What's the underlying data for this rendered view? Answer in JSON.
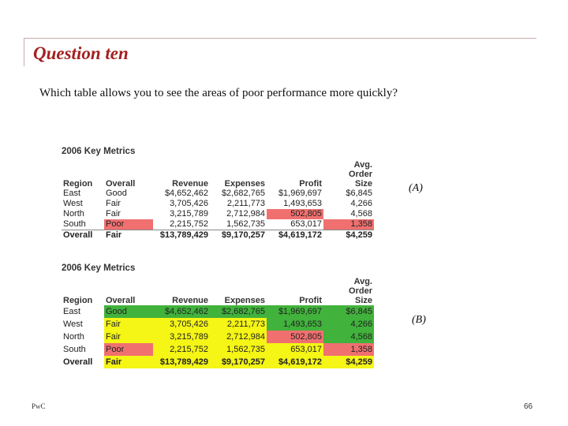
{
  "title": "Question ten",
  "question": "Which table allows you to see the areas of poor performance more quickly?",
  "colors": {
    "title": "#a32020",
    "red": "#f07070",
    "yellow": "#f5f516",
    "green": "#41b23c"
  },
  "table_a": {
    "caption": "2006 Key Metrics",
    "label": "(A)",
    "headers": {
      "region": "Region",
      "overall": "Overall",
      "revenue": "Revenue",
      "expenses": "Expenses",
      "profit": "Profit",
      "avg_line1": "Avg.",
      "avg_line2": "Order",
      "avg_line3": "Size"
    },
    "rows": [
      {
        "region": "East",
        "overall": "Good",
        "revenue": "$4,652,462",
        "expenses": "$2,682,765",
        "profit": "$1,969,697",
        "avg": "$6,845"
      },
      {
        "region": "West",
        "overall": "Fair",
        "revenue": "3,705,426",
        "expenses": "2,211,773",
        "profit": "1,493,653",
        "avg": "4,266"
      },
      {
        "region": "North",
        "overall": "Fair",
        "revenue": "3,215,789",
        "expenses": "2,712,984",
        "profit": "502,805",
        "avg": "4,568"
      },
      {
        "region": "South",
        "overall": "Poor",
        "revenue": "2,215,752",
        "expenses": "1,562,735",
        "profit": "653,017",
        "avg": "1,358"
      }
    ],
    "total": {
      "region": "Overall",
      "overall": "Fair",
      "revenue": "$13,789,429",
      "expenses": "$9,170,257",
      "profit": "$4,619,172",
      "avg": "$4,259"
    }
  },
  "table_b": {
    "caption": "2006 Key Metrics",
    "label": "(B)",
    "headers": {
      "region": "Region",
      "overall": "Overall",
      "revenue": "Revenue",
      "expenses": "Expenses",
      "profit": "Profit",
      "avg_line1": "Avg.",
      "avg_line2": "Order",
      "avg_line3": "Size"
    },
    "rows": [
      {
        "region": "East",
        "overall": "Good",
        "revenue": "$4,652,462",
        "expenses": "$2,682,765",
        "profit": "$1,969,697",
        "avg": "$6,845"
      },
      {
        "region": "West",
        "overall": "Fair",
        "revenue": "3,705,426",
        "expenses": "2,211,773",
        "profit": "1,493,653",
        "avg": "4,266"
      },
      {
        "region": "North",
        "overall": "Fair",
        "revenue": "3,215,789",
        "expenses": "2,712,984",
        "profit": "502,805",
        "avg": "4,568"
      },
      {
        "region": "South",
        "overall": "Poor",
        "revenue": "2,215,752",
        "expenses": "1,562,735",
        "profit": "653,017",
        "avg": "1,358"
      }
    ],
    "total": {
      "region": "Overall",
      "overall": "Fair",
      "revenue": "$13,789,429",
      "expenses": "$9,170,257",
      "profit": "$4,619,172",
      "avg": "$4,259"
    }
  },
  "footer": {
    "brand": "PwC",
    "page_number": "66"
  }
}
